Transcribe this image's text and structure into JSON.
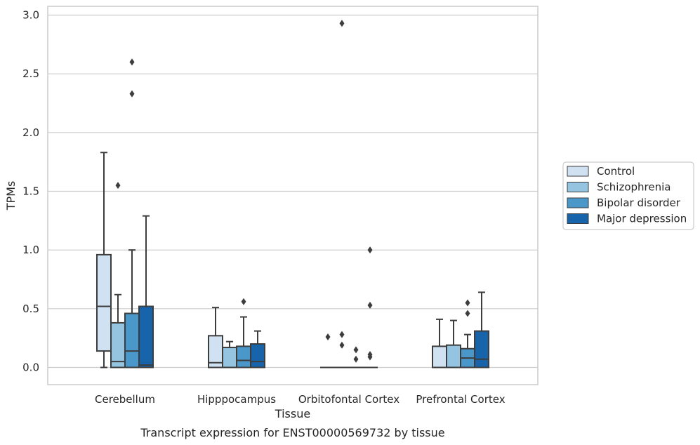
{
  "chart_data": {
    "type": "box",
    "xlabel": "Tissue",
    "ylabel": "TPMs",
    "caption": "Transcript expression for ENST00000569732 by tissue",
    "categories": [
      "Cerebellum",
      "Hipppocampus",
      "Orbitofontal Cortex",
      "Prefrontal Cortex"
    ],
    "ylim": [
      -0.14,
      3.08
    ],
    "yticks": [
      0.0,
      0.5,
      1.0,
      1.5,
      2.0,
      2.5,
      3.0
    ],
    "ytick_labels": [
      "0.0",
      "0.5",
      "1.0",
      "1.5",
      "2.0",
      "2.5",
      "3.0"
    ],
    "grid": "horizontal",
    "legend_position": "right",
    "series": [
      {
        "name": "Control",
        "color": "#d0e1f2",
        "boxes": [
          {
            "min": 0.0,
            "q1": 0.14,
            "median": 0.52,
            "q3": 0.96,
            "max": 1.83,
            "outliers": []
          },
          {
            "min": 0.0,
            "q1": 0.0,
            "median": 0.04,
            "q3": 0.27,
            "max": 0.51,
            "outliers": []
          },
          {
            "min": 0.0,
            "q1": 0.0,
            "median": 0.0,
            "q3": 0.0,
            "max": 0.0,
            "outliers": [
              0.26
            ]
          },
          {
            "min": 0.0,
            "q1": 0.0,
            "median": 0.0,
            "q3": 0.18,
            "max": 0.41,
            "outliers": []
          }
        ]
      },
      {
        "name": "Schizophrenia",
        "color": "#94c4df",
        "boxes": [
          {
            "min": 0.0,
            "q1": 0.0,
            "median": 0.05,
            "q3": 0.38,
            "max": 0.62,
            "outliers": [
              1.55
            ]
          },
          {
            "min": 0.0,
            "q1": 0.0,
            "median": 0.0,
            "q3": 0.17,
            "max": 0.22,
            "outliers": []
          },
          {
            "min": 0.0,
            "q1": 0.0,
            "median": 0.0,
            "q3": 0.0,
            "max": 0.0,
            "outliers": [
              2.93,
              0.28,
              0.19
            ]
          },
          {
            "min": 0.0,
            "q1": 0.0,
            "median": 0.0,
            "q3": 0.19,
            "max": 0.4,
            "outliers": []
          }
        ]
      },
      {
        "name": "Bipolar disorder",
        "color": "#4a98c9",
        "boxes": [
          {
            "min": 0.0,
            "q1": 0.0,
            "median": 0.14,
            "q3": 0.46,
            "max": 1.0,
            "outliers": [
              2.6,
              2.33
            ]
          },
          {
            "min": 0.0,
            "q1": 0.0,
            "median": 0.06,
            "q3": 0.18,
            "max": 0.43,
            "outliers": [
              0.56
            ]
          },
          {
            "min": 0.0,
            "q1": 0.0,
            "median": 0.0,
            "q3": 0.0,
            "max": 0.0,
            "outliers": [
              0.15,
              0.07
            ]
          },
          {
            "min": 0.0,
            "q1": 0.0,
            "median": 0.08,
            "q3": 0.16,
            "max": 0.28,
            "outliers": [
              0.55,
              0.46
            ]
          }
        ]
      },
      {
        "name": "Major depression",
        "color": "#1764ab",
        "boxes": [
          {
            "min": 0.0,
            "q1": 0.0,
            "median": 0.02,
            "q3": 0.52,
            "max": 1.29,
            "outliers": []
          },
          {
            "min": 0.0,
            "q1": 0.0,
            "median": 0.05,
            "q3": 0.2,
            "max": 0.31,
            "outliers": []
          },
          {
            "min": 0.0,
            "q1": 0.0,
            "median": 0.0,
            "q3": 0.0,
            "max": 0.0,
            "outliers": [
              1.0,
              0.53,
              0.11,
              0.09
            ]
          },
          {
            "min": 0.0,
            "q1": 0.0,
            "median": 0.07,
            "q3": 0.31,
            "max": 0.64,
            "outliers": []
          }
        ]
      }
    ]
  }
}
